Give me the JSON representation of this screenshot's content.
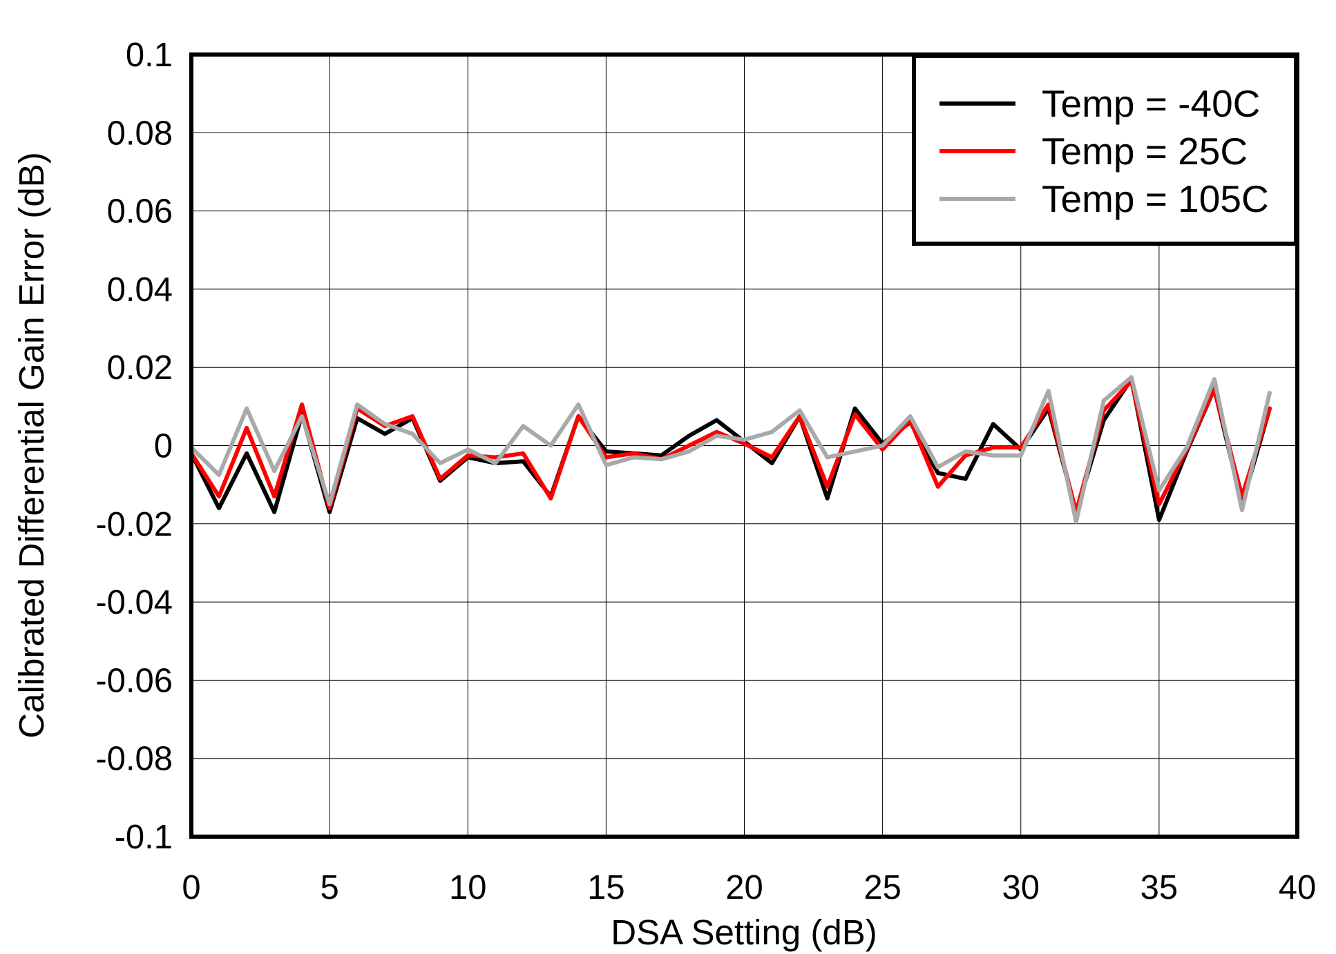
{
  "chart_data": {
    "type": "line",
    "title": "",
    "xlabel": "DSA Setting (dB)",
    "ylabel": "Calibrated Differential Gain Error (dB)",
    "xlim": [
      0,
      40
    ],
    "ylim": [
      -0.1,
      0.1
    ],
    "x_ticks": [
      0,
      5,
      10,
      15,
      20,
      25,
      30,
      35,
      40
    ],
    "x_tick_labels": [
      "0",
      "5",
      "10",
      "15",
      "20",
      "25",
      "30",
      "35",
      "40"
    ],
    "y_ticks": [
      -0.1,
      -0.08,
      -0.06,
      -0.04,
      -0.02,
      0,
      0.02,
      0.04,
      0.06,
      0.08,
      0.1
    ],
    "y_tick_labels": [
      "-0.1",
      "-0.08",
      "-0.06",
      "-0.04",
      "-0.02",
      "0",
      "0.02",
      "0.04",
      "0.06",
      "0.08",
      "0.1"
    ],
    "grid": true,
    "legend_position": "top-right",
    "x": [
      0,
      1,
      2,
      3,
      4,
      5,
      6,
      7,
      8,
      9,
      10,
      11,
      12,
      13,
      14,
      15,
      16,
      17,
      18,
      19,
      20,
      21,
      22,
      23,
      24,
      25,
      26,
      27,
      28,
      29,
      30,
      31,
      32,
      33,
      34,
      35,
      36,
      37,
      38,
      39
    ],
    "series": [
      {
        "name": "Temp = -40C",
        "color": "#000000",
        "values": [
          -0.002,
          -0.016,
          -0.002,
          -0.017,
          0.008,
          -0.017,
          0.007,
          0.003,
          0.007,
          -0.009,
          -0.003,
          -0.0045,
          -0.004,
          -0.013,
          0.0075,
          -0.0015,
          -0.002,
          -0.0025,
          0.0025,
          0.0065,
          0.001,
          -0.0045,
          0.0075,
          -0.0135,
          0.0095,
          0.0005,
          0.006,
          -0.007,
          -0.0085,
          0.0055,
          -0.001,
          0.0095,
          -0.017,
          0.0065,
          0.017,
          -0.019,
          -0.0015,
          0.0145,
          -0.015,
          0.0095
        ]
      },
      {
        "name": "Temp = 25C",
        "color": "#ff0000",
        "values": [
          -0.002,
          -0.013,
          0.0045,
          -0.013,
          0.0105,
          -0.016,
          0.0095,
          0.005,
          0.0075,
          -0.0085,
          -0.0025,
          -0.003,
          -0.002,
          -0.0135,
          0.0075,
          -0.003,
          -0.002,
          -0.0035,
          0.0,
          0.0035,
          0.0005,
          -0.003,
          0.0075,
          -0.0105,
          0.008,
          -0.001,
          0.0065,
          -0.0105,
          -0.0025,
          -0.0005,
          -0.0005,
          0.0105,
          -0.017,
          0.009,
          0.0165,
          -0.015,
          -0.001,
          0.0145,
          -0.013,
          0.0095
        ]
      },
      {
        "name": "Temp = 105C",
        "color": "#a9a9a9",
        "values": [
          -0.0005,
          -0.0075,
          0.0095,
          -0.0065,
          0.0075,
          -0.015,
          0.0105,
          0.0055,
          0.003,
          -0.0045,
          -0.001,
          -0.0045,
          0.005,
          0.0,
          0.0105,
          -0.005,
          -0.003,
          -0.0035,
          -0.0015,
          0.0025,
          0.0015,
          0.0035,
          0.009,
          -0.003,
          -0.0015,
          0.0,
          0.0075,
          -0.0055,
          -0.0015,
          -0.0025,
          -0.0025,
          0.014,
          -0.0195,
          0.0115,
          0.0175,
          -0.0115,
          -0.0005,
          0.017,
          -0.0165,
          0.0135
        ]
      }
    ]
  }
}
